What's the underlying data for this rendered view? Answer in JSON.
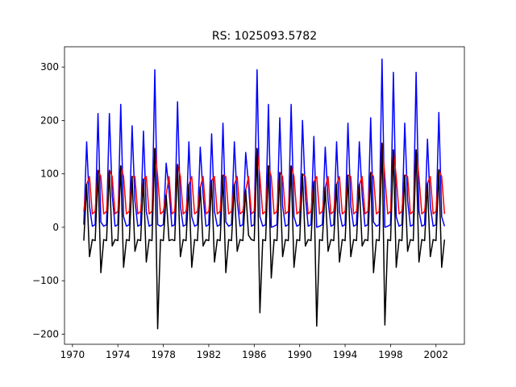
{
  "chart_data": {
    "type": "line",
    "title": "RS: 1025093.5782",
    "x": [
      1971,
      1971.25,
      1971.5,
      1971.75,
      1972,
      1972.25,
      1972.5,
      1972.75,
      1973,
      1973.25,
      1973.5,
      1973.75,
      1974,
      1974.25,
      1974.5,
      1974.75,
      1975,
      1975.25,
      1975.5,
      1975.75,
      1976,
      1976.25,
      1976.5,
      1976.75,
      1977,
      1977.25,
      1977.5,
      1977.75,
      1978,
      1978.25,
      1978.5,
      1978.75,
      1979,
      1979.25,
      1979.5,
      1979.75,
      1980,
      1980.25,
      1980.5,
      1980.75,
      1981,
      1981.25,
      1981.5,
      1981.75,
      1982,
      1982.25,
      1982.5,
      1982.75,
      1983,
      1983.25,
      1983.5,
      1983.75,
      1984,
      1984.25,
      1984.5,
      1984.75,
      1985,
      1985.25,
      1985.5,
      1985.75,
      1986,
      1986.25,
      1986.5,
      1986.75,
      1987,
      1987.25,
      1987.5,
      1987.75,
      1988,
      1988.25,
      1988.5,
      1988.75,
      1989,
      1989.25,
      1989.5,
      1989.75,
      1990,
      1990.25,
      1990.5,
      1990.75,
      1991,
      1991.25,
      1991.5,
      1991.75,
      1992,
      1992.25,
      1992.5,
      1992.75,
      1993,
      1993.25,
      1993.5,
      1993.75,
      1994,
      1994.25,
      1994.5,
      1994.75,
      1995,
      1995.25,
      1995.5,
      1995.75,
      1996,
      1996.25,
      1996.5,
      1996.75,
      1997,
      1997.25,
      1997.5,
      1997.75,
      1998,
      1998.25,
      1998.5,
      1998.75,
      1999,
      1999.25,
      1999.5,
      1999.75,
      2000,
      2000.25,
      2000.5,
      2000.75,
      2001,
      2001.25,
      2001.5,
      2001.75,
      2002,
      2002.25,
      2002.5,
      2002.75
    ],
    "series": [
      {
        "color": "#0000ff",
        "values": [
          5,
          160,
          40,
          2,
          5,
          213,
          10,
          2,
          5,
          213,
          60,
          2,
          5,
          230,
          20,
          2,
          5,
          190,
          50,
          2,
          5,
          180,
          30,
          2,
          5,
          295,
          5,
          2,
          5,
          120,
          70,
          2,
          5,
          235,
          40,
          2,
          5,
          160,
          20,
          2,
          5,
          150,
          60,
          2,
          5,
          175,
          30,
          2,
          5,
          195,
          10,
          2,
          5,
          160,
          50,
          2,
          5,
          140,
          80,
          2,
          5,
          295,
          20,
          2,
          5,
          230,
          0,
          2,
          5,
          205,
          40,
          2,
          5,
          230,
          20,
          2,
          5,
          200,
          60,
          2,
          5,
          170,
          0,
          2,
          5,
          150,
          50,
          2,
          5,
          160,
          30,
          2,
          5,
          195,
          40,
          2,
          5,
          160,
          60,
          2,
          5,
          205,
          10,
          2,
          5,
          315,
          0,
          2,
          5,
          290,
          20,
          2,
          5,
          195,
          50,
          2,
          5,
          290,
          30,
          2,
          5,
          165,
          40,
          2,
          5,
          215,
          20,
          2
        ]
      },
      {
        "color": "#ff0000",
        "values": [
          30,
          80,
          95,
          25,
          30,
          107,
          95,
          25,
          30,
          107,
          95,
          25,
          30,
          115,
          95,
          25,
          30,
          95,
          95,
          25,
          30,
          90,
          95,
          25,
          30,
          148,
          95,
          25,
          30,
          60,
          95,
          25,
          30,
          118,
          95,
          25,
          30,
          80,
          95,
          25,
          30,
          75,
          95,
          25,
          30,
          88,
          95,
          25,
          30,
          98,
          95,
          25,
          30,
          80,
          95,
          25,
          30,
          70,
          95,
          25,
          30,
          148,
          95,
          25,
          30,
          115,
          95,
          25,
          30,
          103,
          95,
          25,
          30,
          115,
          95,
          25,
          30,
          100,
          95,
          25,
          30,
          85,
          95,
          25,
          30,
          75,
          95,
          25,
          30,
          80,
          95,
          25,
          30,
          98,
          95,
          25,
          30,
          80,
          95,
          25,
          30,
          103,
          95,
          25,
          30,
          158,
          95,
          25,
          30,
          145,
          95,
          25,
          30,
          98,
          95,
          25,
          30,
          145,
          95,
          25,
          30,
          83,
          95,
          25,
          30,
          108,
          95,
          25
        ]
      },
      {
        "color": "#000000",
        "values": [
          -25,
          80,
          -55,
          -23,
          -25,
          106,
          -85,
          -23,
          -25,
          106,
          -35,
          -23,
          -25,
          115,
          -75,
          -23,
          -25,
          95,
          -45,
          -23,
          -25,
          90,
          -65,
          -23,
          -25,
          147,
          -190,
          -23,
          -25,
          60,
          -25,
          -23,
          -25,
          117,
          -55,
          -23,
          -25,
          80,
          -75,
          -23,
          -25,
          75,
          -35,
          -23,
          -25,
          87,
          -65,
          -23,
          -25,
          97,
          -85,
          -23,
          -25,
          80,
          -45,
          -23,
          -25,
          70,
          -15,
          -23,
          -25,
          147,
          -160,
          -23,
          -25,
          115,
          -95,
          -23,
          -25,
          102,
          -55,
          -23,
          -25,
          115,
          -75,
          -23,
          -25,
          100,
          -35,
          -23,
          -25,
          85,
          -185,
          -23,
          -25,
          75,
          -45,
          -23,
          -25,
          80,
          -65,
          -23,
          -25,
          97,
          -55,
          -23,
          -25,
          80,
          -35,
          -23,
          -25,
          102,
          -85,
          -23,
          -25,
          157,
          -183,
          -23,
          -25,
          145,
          -75,
          -23,
          -25,
          97,
          -45,
          -23,
          -25,
          145,
          -65,
          -23,
          -25,
          82,
          -55,
          -23,
          -25,
          107,
          -75,
          -23
        ]
      }
    ],
    "xlim": [
      1969.3,
      2004.5
    ],
    "ylim": [
      -219,
      338
    ],
    "xticks": [
      1970,
      1974,
      1978,
      1982,
      1986,
      1990,
      1994,
      1998,
      2002
    ],
    "yticks": [
      {
        "value": -200,
        "label": "−200"
      },
      {
        "value": -100,
        "label": "−100"
      },
      0,
      100,
      200,
      300
    ]
  }
}
